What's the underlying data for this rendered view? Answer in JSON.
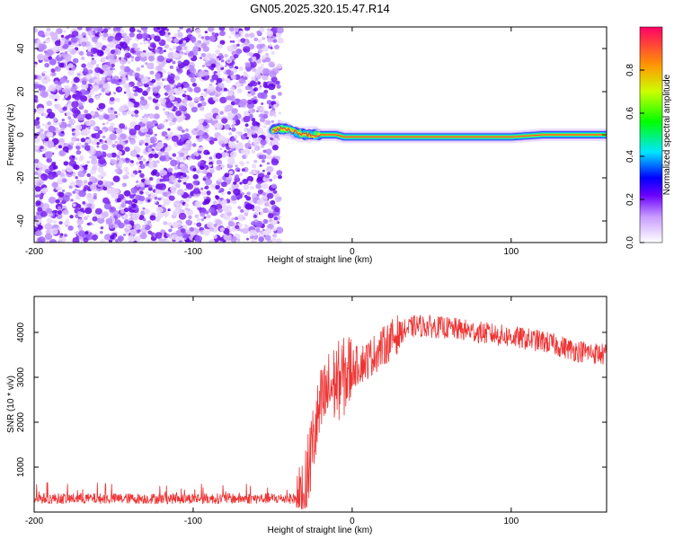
{
  "title": "GN05.2025.320.15.47.R14",
  "chart_data": [
    {
      "type": "heatmap",
      "title": "",
      "xlabel": "Height of straight line (km)",
      "ylabel": "Frequency (Hz)",
      "xlim": [
        -200,
        160
      ],
      "ylim": [
        -50,
        50
      ],
      "xticks": [
        -200,
        -100,
        0,
        100
      ],
      "yticks": [
        -40,
        -20,
        0,
        20,
        40
      ],
      "noise_region_x": [
        -200,
        -45
      ],
      "signal_trace": {
        "x": [
          -50,
          -45,
          -40,
          -35,
          -30,
          -25,
          -20,
          -15,
          -10,
          -5,
          0,
          10,
          20,
          40,
          60,
          80,
          100,
          120,
          140,
          160
        ],
        "frequency": [
          2,
          3,
          2,
          1,
          0,
          0,
          0,
          0,
          0,
          -1,
          -1,
          -1,
          -1,
          -1,
          -1,
          -1,
          -1,
          0,
          0,
          0
        ]
      },
      "colorbar": {
        "label": "Normalized spectral amplitude",
        "range": [
          0.0,
          1.0
        ],
        "ticks": [
          "0.0",
          "0.2",
          "0.4",
          "0.6",
          "0.8"
        ]
      }
    },
    {
      "type": "line",
      "title": "",
      "xlabel": "Height of straight line (km)",
      "ylabel": "SNR (10 * v/v)",
      "xlim": [
        -200,
        160
      ],
      "ylim": [
        0,
        4800
      ],
      "xticks": [
        -200,
        -100,
        0,
        100
      ],
      "yticks": [
        1000,
        2000,
        3000,
        4000
      ],
      "series": [
        {
          "name": "SNR",
          "color": "#ee3333",
          "x": [
            -200,
            -150,
            -100,
            -50,
            -35,
            -30,
            -25,
            -20,
            -15,
            -10,
            -5,
            0,
            10,
            20,
            30,
            40,
            60,
            80,
            100,
            120,
            140,
            160
          ],
          "values": [
            300,
            300,
            300,
            300,
            300,
            400,
            1500,
            2300,
            2700,
            2900,
            3000,
            3200,
            3400,
            3700,
            4000,
            4150,
            4100,
            4000,
            3900,
            3800,
            3600,
            3500
          ]
        }
      ]
    }
  ]
}
